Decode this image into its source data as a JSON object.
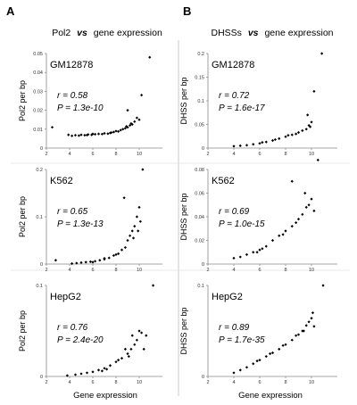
{
  "figure": {
    "panels": [
      {
        "letter": "A",
        "title_left": "Pol2",
        "title_vs": "vs",
        "title_right": "gene expression",
        "ylabel": "Pol2 per bp"
      },
      {
        "letter": "B",
        "title_left": "DHSSs",
        "title_vs": "vs",
        "title_right": "gene expression",
        "ylabel": "DHSS per bp"
      }
    ],
    "xlabel": "Gene expression"
  },
  "chart_data": [
    {
      "type": "scatter",
      "panel": "A",
      "cell": "GM12878",
      "stat_r": "r = 0.58",
      "stat_p": "P = 1.3e-10",
      "ylabel": "Pol2 per bp",
      "xlabel": "",
      "xlim": [
        2,
        12
      ],
      "ylim": [
        0,
        0.05
      ],
      "xticks": [
        "2",
        "4",
        "6",
        "8",
        "10"
      ],
      "yticks": [
        "0",
        "0.01",
        "0.02",
        "0.03",
        "0.04",
        "0.05"
      ],
      "points": [
        [
          2.5,
          0.011
        ],
        [
          3.9,
          0.007
        ],
        [
          4.2,
          0.0065
        ],
        [
          4.5,
          0.0068
        ],
        [
          4.8,
          0.0066
        ],
        [
          5.0,
          0.007
        ],
        [
          5.3,
          0.0068
        ],
        [
          5.6,
          0.0072
        ],
        [
          5.9,
          0.007
        ],
        [
          6.2,
          0.0073
        ],
        [
          6.5,
          0.0075
        ],
        [
          6.8,
          0.0074
        ],
        [
          7.0,
          0.0078
        ],
        [
          7.3,
          0.0076
        ],
        [
          7.5,
          0.008
        ],
        [
          7.8,
          0.0085
        ],
        [
          8.0,
          0.009
        ],
        [
          8.2,
          0.0088
        ],
        [
          8.4,
          0.0095
        ],
        [
          8.6,
          0.01
        ],
        [
          8.8,
          0.0105
        ],
        [
          9.0,
          0.011
        ],
        [
          9.2,
          0.012
        ],
        [
          9.4,
          0.0125
        ],
        [
          9.6,
          0.014
        ],
        [
          9.8,
          0.016
        ],
        [
          9.0,
          0.02
        ],
        [
          10.0,
          0.015
        ],
        [
          10.2,
          0.028
        ],
        [
          10.9,
          0.048
        ],
        [
          6.0,
          0.0075
        ],
        [
          7.6,
          0.0082
        ],
        [
          8.9,
          0.0115
        ],
        [
          9.3,
          0.013
        ],
        [
          5.5,
          0.0069
        ]
      ]
    },
    {
      "type": "scatter",
      "panel": "A",
      "cell": "K562",
      "stat_r": "r = 0.65",
      "stat_p": "P = 1.3e-13",
      "ylabel": "Pol2 per bp",
      "xlabel": "",
      "xlim": [
        2,
        12
      ],
      "ylim": [
        0,
        0.2
      ],
      "xticks": [
        "2",
        "4",
        "6",
        "8",
        "10"
      ],
      "yticks": [
        "0",
        "0.1",
        "0.2"
      ],
      "points": [
        [
          2.8,
          0.008
        ],
        [
          4.2,
          0.001
        ],
        [
          4.6,
          0.002
        ],
        [
          5.0,
          0.003
        ],
        [
          5.4,
          0.004
        ],
        [
          5.8,
          0.005
        ],
        [
          6.2,
          0.006
        ],
        [
          6.6,
          0.008
        ],
        [
          7.0,
          0.01
        ],
        [
          7.4,
          0.013
        ],
        [
          7.8,
          0.018
        ],
        [
          8.2,
          0.022
        ],
        [
          8.5,
          0.03
        ],
        [
          8.8,
          0.035
        ],
        [
          9.0,
          0.05
        ],
        [
          9.2,
          0.06
        ],
        [
          9.4,
          0.07
        ],
        [
          9.6,
          0.08
        ],
        [
          9.8,
          0.1
        ],
        [
          10.0,
          0.12
        ],
        [
          10.1,
          0.09
        ],
        [
          9.5,
          0.055
        ],
        [
          8.7,
          0.14
        ],
        [
          9.9,
          0.07
        ],
        [
          10.3,
          0.2
        ],
        [
          7.0,
          0.012
        ],
        [
          8.0,
          0.02
        ],
        [
          6.0,
          0.004
        ]
      ]
    },
    {
      "type": "scatter",
      "panel": "A",
      "cell": "HepG2",
      "stat_r": "r = 0.76",
      "stat_p": "P = 2.4e-20",
      "ylabel": "Pol2 per bp",
      "xlabel": "Gene expression",
      "xlim": [
        2,
        12
      ],
      "ylim": [
        0,
        0.1
      ],
      "xticks": [
        "2",
        "4",
        "6",
        "8",
        "10"
      ],
      "yticks": [
        "0",
        "0.1"
      ],
      "points": [
        [
          3.8,
          0.001
        ],
        [
          4.5,
          0.002
        ],
        [
          5.0,
          0.003
        ],
        [
          5.5,
          0.004
        ],
        [
          6.0,
          0.005
        ],
        [
          6.5,
          0.007
        ],
        [
          7.0,
          0.009
        ],
        [
          7.5,
          0.012
        ],
        [
          8.0,
          0.016
        ],
        [
          8.5,
          0.02
        ],
        [
          9.0,
          0.025
        ],
        [
          9.3,
          0.03
        ],
        [
          9.6,
          0.035
        ],
        [
          9.8,
          0.04
        ],
        [
          10.0,
          0.05
        ],
        [
          10.2,
          0.048
        ],
        [
          9.4,
          0.045
        ],
        [
          8.8,
          0.03
        ],
        [
          11.2,
          0.1
        ],
        [
          10.4,
          0.03
        ],
        [
          7.2,
          0.008
        ],
        [
          8.2,
          0.018
        ],
        [
          6.8,
          0.006
        ],
        [
          9.1,
          0.022
        ],
        [
          10.6,
          0.045
        ]
      ]
    },
    {
      "type": "scatter",
      "panel": "B",
      "cell": "GM12878",
      "stat_r": "r = 0.72",
      "stat_p": "P = 1.6e-17",
      "ylabel": "DHSS per bp",
      "xlabel": "",
      "xlim": [
        2,
        12
      ],
      "ylim": [
        0,
        0.2
      ],
      "xticks": [
        "2",
        "4",
        "6",
        "8",
        "10"
      ],
      "yticks": [
        "0",
        "0.05",
        "0.1",
        "0.15",
        "0.2"
      ],
      "points": [
        [
          4.0,
          0.004
        ],
        [
          4.5,
          0.005
        ],
        [
          5.0,
          0.006
        ],
        [
          5.5,
          0.008
        ],
        [
          6.0,
          0.01
        ],
        [
          6.5,
          0.013
        ],
        [
          7.0,
          0.016
        ],
        [
          7.5,
          0.02
        ],
        [
          8.0,
          0.024
        ],
        [
          8.5,
          0.028
        ],
        [
          9.0,
          0.033
        ],
        [
          9.3,
          0.037
        ],
        [
          9.6,
          0.04
        ],
        [
          9.8,
          0.048
        ],
        [
          10.0,
          0.055
        ],
        [
          10.2,
          0.12
        ],
        [
          10.8,
          0.2
        ],
        [
          9.7,
          0.07
        ],
        [
          8.8,
          0.03
        ],
        [
          8.2,
          0.027
        ],
        [
          7.2,
          0.018
        ],
        [
          6.2,
          0.012
        ],
        [
          9.9,
          0.045
        ]
      ]
    },
    {
      "type": "scatter",
      "panel": "B",
      "cell": "K562",
      "stat_r": "r = 0.69",
      "stat_p": "P = 1.0e-15",
      "ylabel": "DHSS per bp",
      "xlabel": "",
      "xlim": [
        2,
        12
      ],
      "ylim": [
        0,
        0.08
      ],
      "xticks": [
        "2",
        "4",
        "6",
        "8",
        "10"
      ],
      "yticks": [
        "0",
        "0.02",
        "0.04",
        "0.06",
        "0.08"
      ],
      "points": [
        [
          4.0,
          0.005
        ],
        [
          4.5,
          0.006
        ],
        [
          5.0,
          0.008
        ],
        [
          5.5,
          0.01
        ],
        [
          6.0,
          0.012
        ],
        [
          6.5,
          0.015
        ],
        [
          7.0,
          0.02
        ],
        [
          7.5,
          0.024
        ],
        [
          8.0,
          0.028
        ],
        [
          8.5,
          0.032
        ],
        [
          9.0,
          0.038
        ],
        [
          9.3,
          0.042
        ],
        [
          9.6,
          0.048
        ],
        [
          9.8,
          0.05
        ],
        [
          10.0,
          0.055
        ],
        [
          10.5,
          0.088
        ],
        [
          8.5,
          0.07
        ],
        [
          9.5,
          0.06
        ],
        [
          7.8,
          0.025
        ],
        [
          6.2,
          0.013
        ],
        [
          5.8,
          0.01
        ],
        [
          10.2,
          0.045
        ],
        [
          8.8,
          0.035
        ]
      ]
    },
    {
      "type": "scatter",
      "panel": "B",
      "cell": "HepG2",
      "stat_r": "r = 0.89",
      "stat_p": "P = 1.7e-35",
      "ylabel": "DHSS per bp",
      "xlabel": "Gene expression",
      "xlim": [
        2,
        12
      ],
      "ylim": [
        0,
        0.1
      ],
      "xticks": [
        "2",
        "4",
        "6",
        "8",
        "10"
      ],
      "yticks": [
        "0",
        "0.1"
      ],
      "points": [
        [
          4.0,
          0.004
        ],
        [
          4.5,
          0.007
        ],
        [
          5.0,
          0.01
        ],
        [
          5.5,
          0.014
        ],
        [
          6.0,
          0.018
        ],
        [
          6.5,
          0.022
        ],
        [
          7.0,
          0.026
        ],
        [
          7.5,
          0.03
        ],
        [
          8.0,
          0.035
        ],
        [
          8.5,
          0.04
        ],
        [
          9.0,
          0.046
        ],
        [
          9.3,
          0.05
        ],
        [
          9.6,
          0.056
        ],
        [
          9.8,
          0.06
        ],
        [
          10.0,
          0.064
        ],
        [
          10.2,
          0.055
        ],
        [
          10.9,
          0.1
        ],
        [
          8.8,
          0.045
        ],
        [
          7.8,
          0.034
        ],
        [
          6.8,
          0.025
        ],
        [
          9.4,
          0.05
        ],
        [
          10.1,
          0.07
        ],
        [
          5.8,
          0.017
        ]
      ]
    }
  ]
}
